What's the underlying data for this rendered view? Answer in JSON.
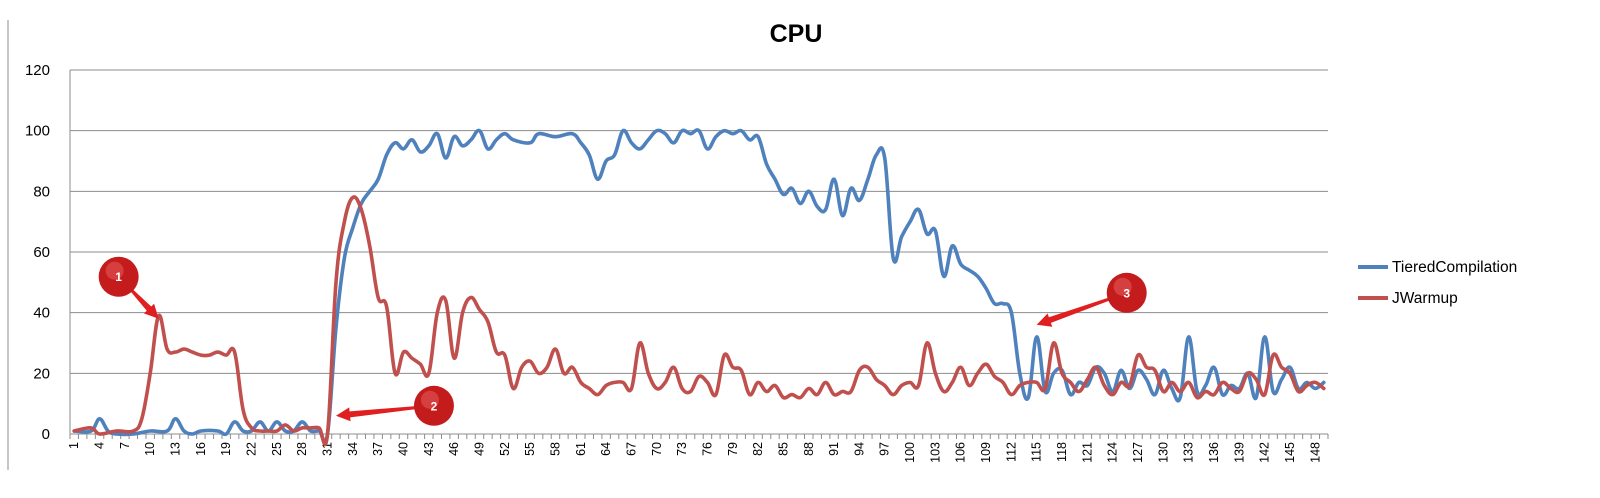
{
  "chart_data": {
    "type": "line",
    "title": "CPU",
    "xlabel": "",
    "ylabel": "",
    "ylim": [
      0,
      120
    ],
    "yticks": [
      0,
      20,
      40,
      60,
      80,
      100,
      120
    ],
    "xlim": [
      1,
      149
    ],
    "xtick_step": 3,
    "grid": "horizontal",
    "legend_position": "right",
    "series": [
      {
        "name": "TieredCompilation",
        "color": "#4f81bd",
        "points": [
          [
            1,
            1
          ],
          [
            3,
            1
          ],
          [
            4,
            5
          ],
          [
            5,
            1
          ],
          [
            6,
            0
          ],
          [
            8,
            0
          ],
          [
            10,
            1
          ],
          [
            12,
            1
          ],
          [
            13,
            5
          ],
          [
            14,
            1
          ],
          [
            15,
            0
          ],
          [
            16,
            1
          ],
          [
            18,
            1
          ],
          [
            19,
            0
          ],
          [
            20,
            4
          ],
          [
            21,
            1
          ],
          [
            22,
            1
          ],
          [
            23,
            4
          ],
          [
            24,
            1
          ],
          [
            25,
            4
          ],
          [
            26,
            1
          ],
          [
            27,
            1
          ],
          [
            28,
            4
          ],
          [
            29,
            1
          ],
          [
            30,
            1
          ],
          [
            31,
            0
          ],
          [
            32,
            35
          ],
          [
            33,
            58
          ],
          [
            34,
            68
          ],
          [
            35,
            76
          ],
          [
            36,
            80
          ],
          [
            37,
            84
          ],
          [
            38,
            92
          ],
          [
            39,
            96
          ],
          [
            40,
            94
          ],
          [
            41,
            97
          ],
          [
            42,
            93
          ],
          [
            43,
            95
          ],
          [
            44,
            99
          ],
          [
            45,
            91
          ],
          [
            46,
            98
          ],
          [
            47,
            95
          ],
          [
            48,
            97
          ],
          [
            49,
            100
          ],
          [
            50,
            94
          ],
          [
            51,
            97
          ],
          [
            52,
            99
          ],
          [
            53,
            97
          ],
          [
            55,
            96
          ],
          [
            56,
            99
          ],
          [
            58,
            98
          ],
          [
            60,
            99
          ],
          [
            61,
            96
          ],
          [
            62,
            92
          ],
          [
            63,
            84
          ],
          [
            64,
            90
          ],
          [
            65,
            92
          ],
          [
            66,
            100
          ],
          [
            67,
            96
          ],
          [
            68,
            94
          ],
          [
            69,
            97
          ],
          [
            70,
            100
          ],
          [
            71,
            99
          ],
          [
            72,
            96
          ],
          [
            73,
            100
          ],
          [
            74,
            99
          ],
          [
            75,
            100
          ],
          [
            76,
            94
          ],
          [
            77,
            98
          ],
          [
            78,
            100
          ],
          [
            79,
            99
          ],
          [
            80,
            100
          ],
          [
            81,
            97
          ],
          [
            82,
            98
          ],
          [
            83,
            89
          ],
          [
            84,
            84
          ],
          [
            85,
            79
          ],
          [
            86,
            81
          ],
          [
            87,
            76
          ],
          [
            88,
            80
          ],
          [
            89,
            75
          ],
          [
            90,
            74
          ],
          [
            91,
            84
          ],
          [
            92,
            72
          ],
          [
            93,
            81
          ],
          [
            94,
            77
          ],
          [
            95,
            84
          ],
          [
            96,
            92
          ],
          [
            97,
            91
          ],
          [
            98,
            58
          ],
          [
            99,
            65
          ],
          [
            100,
            70
          ],
          [
            101,
            74
          ],
          [
            102,
            66
          ],
          [
            103,
            67
          ],
          [
            104,
            52
          ],
          [
            105,
            62
          ],
          [
            106,
            56
          ],
          [
            107,
            54
          ],
          [
            108,
            52
          ],
          [
            109,
            48
          ],
          [
            110,
            43
          ],
          [
            111,
            43
          ],
          [
            112,
            40
          ],
          [
            113,
            20
          ],
          [
            114,
            12
          ],
          [
            115,
            32
          ],
          [
            116,
            14
          ],
          [
            117,
            20
          ],
          [
            118,
            21
          ],
          [
            119,
            13
          ],
          [
            120,
            17
          ],
          [
            121,
            16
          ],
          [
            122,
            22
          ],
          [
            123,
            20
          ],
          [
            124,
            14
          ],
          [
            125,
            21
          ],
          [
            126,
            15
          ],
          [
            127,
            21
          ],
          [
            128,
            18
          ],
          [
            129,
            13
          ],
          [
            130,
            21
          ],
          [
            131,
            15
          ],
          [
            132,
            12
          ],
          [
            133,
            32
          ],
          [
            134,
            14
          ],
          [
            135,
            16
          ],
          [
            136,
            22
          ],
          [
            137,
            13
          ],
          [
            138,
            16
          ],
          [
            139,
            15
          ],
          [
            140,
            20
          ],
          [
            141,
            12
          ],
          [
            142,
            32
          ],
          [
            143,
            14
          ],
          [
            144,
            18
          ],
          [
            145,
            22
          ],
          [
            146,
            15
          ],
          [
            147,
            17
          ],
          [
            148,
            15
          ],
          [
            149,
            17
          ]
        ]
      },
      {
        "name": "JWarmup",
        "color": "#c0504d",
        "points": [
          [
            1,
            1
          ],
          [
            3,
            2
          ],
          [
            4,
            0
          ],
          [
            6,
            1
          ],
          [
            8,
            1
          ],
          [
            9,
            5
          ],
          [
            10,
            20
          ],
          [
            11,
            39
          ],
          [
            12,
            28
          ],
          [
            13,
            27
          ],
          [
            14,
            28
          ],
          [
            15,
            27
          ],
          [
            16,
            26
          ],
          [
            17,
            26
          ],
          [
            18,
            27
          ],
          [
            19,
            26
          ],
          [
            20,
            27
          ],
          [
            21,
            8
          ],
          [
            22,
            2
          ],
          [
            23,
            1
          ],
          [
            24,
            1
          ],
          [
            25,
            1
          ],
          [
            26,
            3
          ],
          [
            27,
            1
          ],
          [
            28,
            2
          ],
          [
            29,
            2
          ],
          [
            30,
            2
          ],
          [
            31,
            0
          ],
          [
            32,
            50
          ],
          [
            33,
            70
          ],
          [
            34,
            78
          ],
          [
            35,
            74
          ],
          [
            36,
            62
          ],
          [
            37,
            45
          ],
          [
            38,
            42
          ],
          [
            39,
            20
          ],
          [
            40,
            27
          ],
          [
            41,
            25
          ],
          [
            42,
            23
          ],
          [
            43,
            20
          ],
          [
            44,
            40
          ],
          [
            45,
            44
          ],
          [
            46,
            25
          ],
          [
            47,
            40
          ],
          [
            48,
            45
          ],
          [
            49,
            41
          ],
          [
            50,
            37
          ],
          [
            51,
            27
          ],
          [
            52,
            26
          ],
          [
            53,
            15
          ],
          [
            54,
            22
          ],
          [
            55,
            24
          ],
          [
            56,
            20
          ],
          [
            57,
            22
          ],
          [
            58,
            28
          ],
          [
            59,
            20
          ],
          [
            60,
            22
          ],
          [
            61,
            17
          ],
          [
            62,
            15
          ],
          [
            63,
            13
          ],
          [
            64,
            16
          ],
          [
            65,
            17
          ],
          [
            66,
            17
          ],
          [
            67,
            15
          ],
          [
            68,
            30
          ],
          [
            69,
            20
          ],
          [
            70,
            15
          ],
          [
            71,
            17
          ],
          [
            72,
            22
          ],
          [
            73,
            15
          ],
          [
            74,
            14
          ],
          [
            75,
            19
          ],
          [
            76,
            17
          ],
          [
            77,
            13
          ],
          [
            78,
            26
          ],
          [
            79,
            22
          ],
          [
            80,
            21
          ],
          [
            81,
            13
          ],
          [
            82,
            17
          ],
          [
            83,
            14
          ],
          [
            84,
            16
          ],
          [
            85,
            12
          ],
          [
            86,
            13
          ],
          [
            87,
            12
          ],
          [
            88,
            15
          ],
          [
            89,
            13
          ],
          [
            90,
            17
          ],
          [
            91,
            13
          ],
          [
            92,
            14
          ],
          [
            93,
            14
          ],
          [
            94,
            21
          ],
          [
            95,
            22
          ],
          [
            96,
            18
          ],
          [
            97,
            16
          ],
          [
            98,
            13
          ],
          [
            99,
            16
          ],
          [
            100,
            17
          ],
          [
            101,
            16
          ],
          [
            102,
            30
          ],
          [
            103,
            20
          ],
          [
            104,
            14
          ],
          [
            105,
            17
          ],
          [
            106,
            22
          ],
          [
            107,
            16
          ],
          [
            108,
            20
          ],
          [
            109,
            23
          ],
          [
            110,
            19
          ],
          [
            111,
            17
          ],
          [
            112,
            13
          ],
          [
            113,
            16
          ],
          [
            114,
            17
          ],
          [
            115,
            17
          ],
          [
            116,
            15
          ],
          [
            117,
            30
          ],
          [
            118,
            20
          ],
          [
            119,
            17
          ],
          [
            120,
            14
          ],
          [
            121,
            18
          ],
          [
            122,
            22
          ],
          [
            123,
            16
          ],
          [
            124,
            13
          ],
          [
            125,
            17
          ],
          [
            126,
            16
          ],
          [
            127,
            26
          ],
          [
            128,
            22
          ],
          [
            129,
            21
          ],
          [
            130,
            14
          ],
          [
            131,
            17
          ],
          [
            132,
            14
          ],
          [
            133,
            17
          ],
          [
            134,
            12
          ],
          [
            135,
            14
          ],
          [
            136,
            13
          ],
          [
            137,
            17
          ],
          [
            138,
            15
          ],
          [
            139,
            14
          ],
          [
            140,
            20
          ],
          [
            141,
            18
          ],
          [
            142,
            13
          ],
          [
            143,
            26
          ],
          [
            144,
            22
          ],
          [
            145,
            20
          ],
          [
            146,
            14
          ],
          [
            147,
            16
          ],
          [
            148,
            17
          ],
          [
            149,
            15
          ]
        ]
      }
    ],
    "annotations": [
      {
        "label": "1",
        "target": [
          11,
          38
        ]
      },
      {
        "label": "2",
        "target": [
          32,
          6
        ]
      },
      {
        "label": "3",
        "target": [
          115,
          36
        ]
      }
    ]
  }
}
